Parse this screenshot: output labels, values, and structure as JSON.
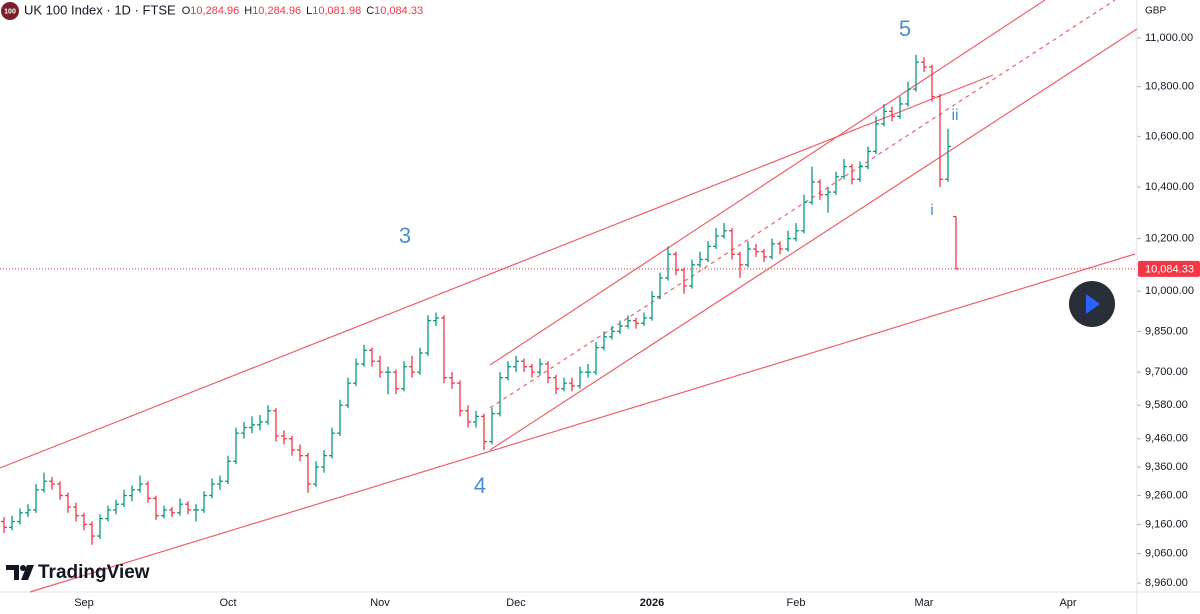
{
  "chart_data": {
    "type": "ohlc",
    "symbol_badge": "100",
    "title": "UK 100 Index · 1D · FTSE",
    "legend_ohlc": [
      {
        "key": "O",
        "value": "10,284.96"
      },
      {
        "key": "H",
        "value": "10,284.96"
      },
      {
        "key": "L",
        "value": "10,081.98"
      },
      {
        "key": "C",
        "value": "10,084.33"
      }
    ],
    "currency": "GBP",
    "watermark": "TradingView",
    "log_scale": true,
    "up_color": "#089981",
    "down_color": "#f23645",
    "ylim": [
      8930,
      11158
    ],
    "yticks": [
      {
        "value": 8960,
        "label": "8,960.00"
      },
      {
        "value": 9060,
        "label": "9,060.00"
      },
      {
        "value": 9160,
        "label": "9,160.00"
      },
      {
        "value": 9260,
        "label": "9,260.00"
      },
      {
        "value": 9360,
        "label": "9,360.00"
      },
      {
        "value": 9460,
        "label": "9,460.00"
      },
      {
        "value": 9580,
        "label": "9,580.00"
      },
      {
        "value": 9700,
        "label": "9,700.00"
      },
      {
        "value": 9850,
        "label": "9,850.00"
      },
      {
        "value": 10000,
        "label": "10,000.00"
      },
      {
        "value": 10200,
        "label": "10,200.00"
      },
      {
        "value": 10400,
        "label": "10,400.00"
      },
      {
        "value": 10600,
        "label": "10,600.00"
      },
      {
        "value": 10800,
        "label": "10,800.00"
      },
      {
        "value": 11000,
        "label": "11,000.00"
      }
    ],
    "last_price": {
      "value": 10084.33,
      "label": "10,084.33"
    },
    "annotations": [
      "3",
      "4",
      "5",
      "i",
      "ii"
    ],
    "categories": [
      null,
      null,
      null,
      null,
      null,
      null,
      null,
      null,
      null,
      null,
      "Sep",
      null,
      null,
      null,
      null,
      null,
      null,
      null,
      null,
      null,
      null,
      null,
      null,
      null,
      null,
      null,
      null,
      null,
      "Oct",
      null,
      null,
      null,
      null,
      null,
      null,
      null,
      null,
      null,
      null,
      null,
      null,
      null,
      null,
      null,
      null,
      null,
      null,
      "Nov",
      null,
      null,
      null,
      null,
      null,
      null,
      null,
      null,
      null,
      null,
      null,
      null,
      null,
      null,
      null,
      null,
      "Dec",
      null,
      null,
      null,
      null,
      null,
      null,
      null,
      null,
      null,
      null,
      null,
      null,
      null,
      null,
      null,
      null,
      "2026",
      null,
      null,
      null,
      null,
      null,
      null,
      null,
      null,
      null,
      null,
      null,
      null,
      null,
      null,
      null,
      null,
      null,
      "Feb",
      null,
      null,
      null,
      null,
      null,
      null,
      null,
      null,
      null,
      null,
      null,
      null,
      null,
      null,
      null,
      "Mar",
      null,
      null,
      null,
      null,
      null,
      null,
      null,
      null,
      null,
      null,
      null,
      null,
      null,
      null,
      null,
      null,
      null,
      "Apr",
      null,
      null,
      null,
      null,
      null,
      null,
      null,
      null
    ],
    "ohlc": [
      [
        9170,
        9185,
        9130,
        9150
      ],
      [
        9150,
        9190,
        9140,
        9170
      ],
      [
        9170,
        9215,
        9160,
        9200
      ],
      [
        9200,
        9230,
        9185,
        9210
      ],
      [
        9210,
        9300,
        9200,
        9280
      ],
      [
        9280,
        9340,
        9270,
        9310
      ],
      [
        9310,
        9325,
        9280,
        9300
      ],
      [
        9300,
        9310,
        9245,
        9260
      ],
      [
        9260,
        9270,
        9200,
        9220
      ],
      [
        9220,
        9235,
        9170,
        9190
      ],
      [
        9190,
        9200,
        9140,
        9160
      ],
      [
        9160,
        9170,
        9090,
        9120
      ],
      [
        9120,
        9195,
        9110,
        9180
      ],
      [
        9180,
        9225,
        9170,
        9210
      ],
      [
        9210,
        9245,
        9195,
        9230
      ],
      [
        9230,
        9280,
        9220,
        9260
      ],
      [
        9260,
        9295,
        9240,
        9280
      ],
      [
        9280,
        9330,
        9270,
        9300
      ],
      [
        9300,
        9310,
        9235,
        9250
      ],
      [
        9250,
        9260,
        9175,
        9190
      ],
      [
        9190,
        9225,
        9180,
        9210
      ],
      [
        9210,
        9220,
        9185,
        9200
      ],
      [
        9200,
        9250,
        9190,
        9230
      ],
      [
        9230,
        9240,
        9195,
        9210
      ],
      [
        9210,
        9230,
        9170,
        9210
      ],
      [
        9210,
        9275,
        9200,
        9260
      ],
      [
        9260,
        9320,
        9250,
        9300
      ],
      [
        9300,
        9330,
        9280,
        9310
      ],
      [
        9310,
        9400,
        9300,
        9380
      ],
      [
        9380,
        9500,
        9370,
        9480
      ],
      [
        9480,
        9520,
        9460,
        9500
      ],
      [
        9500,
        9540,
        9480,
        9510
      ],
      [
        9510,
        9545,
        9490,
        9520
      ],
      [
        9520,
        9580,
        9510,
        9560
      ],
      [
        9560,
        9570,
        9450,
        9470
      ],
      [
        9470,
        9490,
        9440,
        9460
      ],
      [
        9460,
        9470,
        9400,
        9420
      ],
      [
        9420,
        9440,
        9380,
        9400
      ],
      [
        9400,
        9410,
        9270,
        9300
      ],
      [
        9300,
        9380,
        9290,
        9360
      ],
      [
        9360,
        9420,
        9340,
        9400
      ],
      [
        9400,
        9500,
        9390,
        9480
      ],
      [
        9480,
        9600,
        9470,
        9580
      ],
      [
        9580,
        9680,
        9570,
        9660
      ],
      [
        9660,
        9750,
        9650,
        9730
      ],
      [
        9730,
        9800,
        9720,
        9780
      ],
      [
        9780,
        9790,
        9720,
        9740
      ],
      [
        9740,
        9760,
        9680,
        9700
      ],
      [
        9700,
        9720,
        9620,
        9700
      ],
      [
        9700,
        9710,
        9620,
        9640
      ],
      [
        9640,
        9740,
        9630,
        9720
      ],
      [
        9720,
        9760,
        9680,
        9700
      ],
      [
        9700,
        9790,
        9690,
        9770
      ],
      [
        9770,
        9910,
        9760,
        9890
      ],
      [
        9890,
        9920,
        9870,
        9900
      ],
      [
        9900,
        9910,
        9660,
        9680
      ],
      [
        9680,
        9700,
        9640,
        9660
      ],
      [
        9660,
        9670,
        9540,
        9560
      ],
      [
        9560,
        9580,
        9500,
        9520
      ],
      [
        9520,
        9560,
        9500,
        9540
      ],
      [
        9540,
        9550,
        9420,
        9450
      ],
      [
        9450,
        9570,
        9440,
        9550
      ],
      [
        9550,
        9700,
        9540,
        9680
      ],
      [
        9680,
        9740,
        9670,
        9720
      ],
      [
        9720,
        9760,
        9700,
        9740
      ],
      [
        9740,
        9750,
        9700,
        9720
      ],
      [
        9720,
        9730,
        9680,
        9700
      ],
      [
        9700,
        9750,
        9690,
        9730
      ],
      [
        9730,
        9740,
        9660,
        9680
      ],
      [
        9680,
        9690,
        9620,
        9640
      ],
      [
        9640,
        9680,
        9630,
        9660
      ],
      [
        9660,
        9680,
        9630,
        9650
      ],
      [
        9650,
        9720,
        9640,
        9700
      ],
      [
        9700,
        9730,
        9680,
        9700
      ],
      [
        9700,
        9810,
        9690,
        9790
      ],
      [
        9790,
        9850,
        9780,
        9830
      ],
      [
        9830,
        9870,
        9820,
        9850
      ],
      [
        9850,
        9890,
        9840,
        9870
      ],
      [
        9870,
        9910,
        9860,
        9890
      ],
      [
        9890,
        9900,
        9860,
        9880
      ],
      [
        9880,
        9920,
        9870,
        9900
      ],
      [
        9900,
        10000,
        9890,
        9980
      ],
      [
        9980,
        10070,
        9970,
        10050
      ],
      [
        10050,
        10170,
        10040,
        10140
      ],
      [
        10140,
        10150,
        10060,
        10080
      ],
      [
        10080,
        10090,
        9990,
        10020
      ],
      [
        10020,
        10120,
        10010,
        10100
      ],
      [
        10100,
        10150,
        10090,
        10120
      ],
      [
        10120,
        10190,
        10110,
        10170
      ],
      [
        10170,
        10240,
        10160,
        10210
      ],
      [
        10210,
        10260,
        10200,
        10230
      ],
      [
        10230,
        10240,
        10120,
        10140
      ],
      [
        10140,
        10150,
        10050,
        10100
      ],
      [
        10100,
        10190,
        10090,
        10160
      ],
      [
        10160,
        10180,
        10130,
        10150
      ],
      [
        10150,
        10160,
        10110,
        10130
      ],
      [
        10130,
        10200,
        10120,
        10180
      ],
      [
        10180,
        10190,
        10140,
        10160
      ],
      [
        10160,
        10230,
        10150,
        10200
      ],
      [
        10200,
        10260,
        10190,
        10230
      ],
      [
        10230,
        10370,
        10220,
        10340
      ],
      [
        10340,
        10480,
        10330,
        10420
      ],
      [
        10420,
        10430,
        10350,
        10370
      ],
      [
        10370,
        10400,
        10300,
        10380
      ],
      [
        10380,
        10460,
        10370,
        10440
      ],
      [
        10440,
        10510,
        10430,
        10480
      ],
      [
        10480,
        10490,
        10410,
        10430
      ],
      [
        10430,
        10500,
        10420,
        10480
      ],
      [
        10480,
        10560,
        10470,
        10540
      ],
      [
        10540,
        10680,
        10530,
        10650
      ],
      [
        10650,
        10730,
        10640,
        10700
      ],
      [
        10700,
        10720,
        10660,
        10680
      ],
      [
        10680,
        10760,
        10670,
        10730
      ],
      [
        10730,
        10820,
        10720,
        10790
      ],
      [
        10790,
        10930,
        10780,
        10900
      ],
      [
        10900,
        10920,
        10860,
        10880
      ],
      [
        10880,
        10890,
        10740,
        10760
      ],
      [
        10760,
        10770,
        10400,
        10430
      ],
      [
        10430,
        10630,
        10420,
        10560
      ],
      [
        10284.96,
        10284.96,
        10081.98,
        10084.33
      ],
      null,
      null,
      null,
      null,
      null,
      null,
      null,
      null,
      null,
      null,
      null,
      null,
      null,
      null,
      null,
      null,
      null,
      null,
      null,
      null,
      null,
      null
    ]
  }
}
